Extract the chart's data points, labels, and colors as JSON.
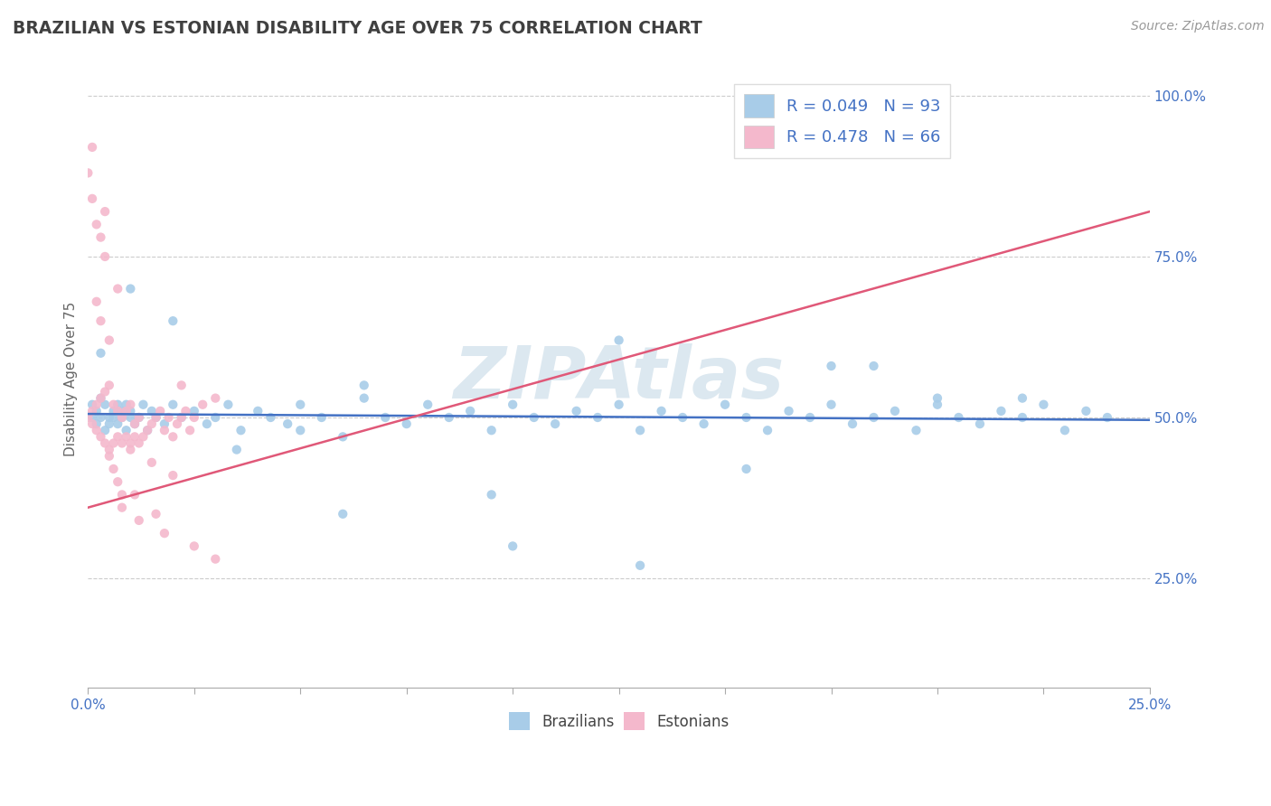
{
  "title": "BRAZILIAN VS ESTONIAN DISABILITY AGE OVER 75 CORRELATION CHART",
  "source_text": "Source: ZipAtlas.com",
  "ylabel": "Disability Age Over 75",
  "xlim": [
    0.0,
    0.25
  ],
  "ylim": [
    0.08,
    1.04
  ],
  "yticks": [
    0.25,
    0.5,
    0.75,
    1.0
  ],
  "ytick_labels": [
    "25.0%",
    "50.0%",
    "75.0%",
    "100.0%"
  ],
  "xtick_labels": [
    "0.0%",
    "",
    "",
    "",
    "",
    "",
    "",
    "",
    "",
    "",
    "25.0%"
  ],
  "blue_R": 0.049,
  "blue_N": 93,
  "pink_R": 0.478,
  "pink_N": 66,
  "blue_color": "#a8cce8",
  "pink_color": "#f4b8cc",
  "blue_line_color": "#4472c4",
  "pink_line_color": "#e05878",
  "legend_text_color": "#4472c4",
  "title_color": "#404040",
  "watermark_color": "#dce8f0",
  "background_color": "#ffffff",
  "grid_color": "#cccccc",
  "axis_color": "#aaaaaa",
  "blue_scatter_x": [
    0.001,
    0.001,
    0.002,
    0.002,
    0.003,
    0.003,
    0.004,
    0.004,
    0.005,
    0.005,
    0.006,
    0.006,
    0.007,
    0.007,
    0.008,
    0.008,
    0.009,
    0.009,
    0.01,
    0.01,
    0.011,
    0.012,
    0.013,
    0.014,
    0.015,
    0.016,
    0.018,
    0.02,
    0.022,
    0.025,
    0.028,
    0.03,
    0.033,
    0.036,
    0.04,
    0.043,
    0.047,
    0.05,
    0.055,
    0.06,
    0.065,
    0.07,
    0.075,
    0.08,
    0.085,
    0.09,
    0.095,
    0.1,
    0.105,
    0.11,
    0.115,
    0.12,
    0.125,
    0.13,
    0.135,
    0.14,
    0.145,
    0.15,
    0.155,
    0.16,
    0.165,
    0.17,
    0.175,
    0.18,
    0.185,
    0.19,
    0.195,
    0.2,
    0.205,
    0.21,
    0.215,
    0.22,
    0.225,
    0.23,
    0.235,
    0.24,
    0.003,
    0.035,
    0.065,
    0.095,
    0.125,
    0.155,
    0.185,
    0.02,
    0.06,
    0.13,
    0.175,
    0.22,
    0.05,
    0.1,
    0.15,
    0.2,
    0.01
  ],
  "blue_scatter_y": [
    0.5,
    0.52,
    0.49,
    0.51,
    0.5,
    0.53,
    0.48,
    0.52,
    0.5,
    0.49,
    0.51,
    0.5,
    0.49,
    0.52,
    0.51,
    0.5,
    0.48,
    0.52,
    0.5,
    0.51,
    0.49,
    0.5,
    0.52,
    0.48,
    0.51,
    0.5,
    0.49,
    0.52,
    0.5,
    0.51,
    0.49,
    0.5,
    0.52,
    0.48,
    0.51,
    0.5,
    0.49,
    0.52,
    0.5,
    0.47,
    0.53,
    0.5,
    0.49,
    0.52,
    0.5,
    0.51,
    0.48,
    0.52,
    0.5,
    0.49,
    0.51,
    0.5,
    0.52,
    0.48,
    0.51,
    0.5,
    0.49,
    0.52,
    0.5,
    0.48,
    0.51,
    0.5,
    0.52,
    0.49,
    0.5,
    0.51,
    0.48,
    0.52,
    0.5,
    0.49,
    0.51,
    0.5,
    0.52,
    0.48,
    0.51,
    0.5,
    0.6,
    0.45,
    0.55,
    0.38,
    0.62,
    0.42,
    0.58,
    0.65,
    0.35,
    0.27,
    0.58,
    0.53,
    0.48,
    0.3,
    0.55,
    0.53,
    0.7
  ],
  "pink_scatter_x": [
    0.0,
    0.001,
    0.001,
    0.002,
    0.002,
    0.003,
    0.003,
    0.004,
    0.004,
    0.005,
    0.005,
    0.006,
    0.006,
    0.007,
    0.007,
    0.008,
    0.008,
    0.009,
    0.009,
    0.01,
    0.01,
    0.011,
    0.011,
    0.012,
    0.012,
    0.013,
    0.014,
    0.015,
    0.016,
    0.017,
    0.018,
    0.019,
    0.02,
    0.021,
    0.022,
    0.023,
    0.024,
    0.025,
    0.027,
    0.03,
    0.0,
    0.001,
    0.002,
    0.003,
    0.004,
    0.005,
    0.006,
    0.007,
    0.008,
    0.002,
    0.003,
    0.005,
    0.008,
    0.012,
    0.018,
    0.025,
    0.01,
    0.015,
    0.02,
    0.03,
    0.001,
    0.004,
    0.007,
    0.011,
    0.016,
    0.022
  ],
  "pink_scatter_y": [
    0.5,
    0.49,
    0.51,
    0.48,
    0.52,
    0.47,
    0.53,
    0.46,
    0.54,
    0.45,
    0.55,
    0.46,
    0.52,
    0.47,
    0.51,
    0.46,
    0.5,
    0.47,
    0.51,
    0.46,
    0.52,
    0.47,
    0.49,
    0.46,
    0.5,
    0.47,
    0.48,
    0.49,
    0.5,
    0.51,
    0.48,
    0.5,
    0.47,
    0.49,
    0.5,
    0.51,
    0.48,
    0.5,
    0.52,
    0.53,
    0.88,
    0.84,
    0.8,
    0.78,
    0.82,
    0.44,
    0.42,
    0.4,
    0.38,
    0.68,
    0.65,
    0.62,
    0.36,
    0.34,
    0.32,
    0.3,
    0.45,
    0.43,
    0.41,
    0.28,
    0.92,
    0.75,
    0.7,
    0.38,
    0.35,
    0.55
  ]
}
